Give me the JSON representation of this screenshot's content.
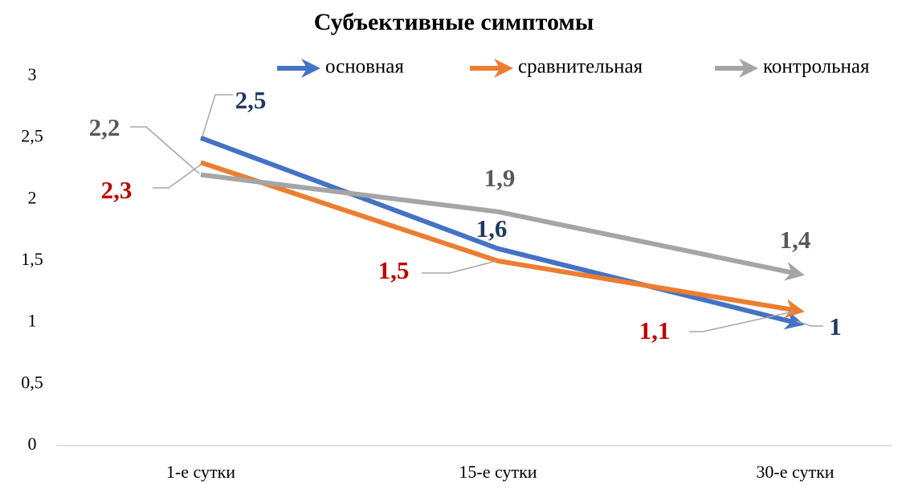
{
  "chart_data": {
    "type": "line",
    "title": "Субъективные симптомы",
    "categories": [
      "1-е сутки",
      "15-е сутки",
      "30-е сутки"
    ],
    "series": [
      {
        "name": "основная",
        "color": "#4472c4",
        "label_color": "#1f3864",
        "values": [
          2.5,
          1.6,
          1
        ],
        "value_labels": [
          "2,5",
          "1,6",
          "1"
        ]
      },
      {
        "name": "сравнительная",
        "color": "#ed7d31",
        "label_color": "#c00000",
        "values": [
          2.3,
          1.5,
          1.1
        ],
        "value_labels": [
          "2,3",
          "1,5",
          "1,1"
        ]
      },
      {
        "name": "контрольная",
        "color": "#a5a5a5",
        "label_color": "#595959",
        "values": [
          2.2,
          1.9,
          1.4
        ],
        "value_labels": [
          "2,2",
          "1,9",
          "1,4"
        ]
      }
    ],
    "ylim": [
      0,
      3
    ],
    "yticks": [
      0,
      {
        "value": 0.5,
        "label": "0,5"
      },
      1,
      {
        "value": 1.5,
        "label": "1,5"
      },
      2,
      {
        "value": 2.5,
        "label": "2,5"
      },
      3
    ],
    "grid": false
  }
}
